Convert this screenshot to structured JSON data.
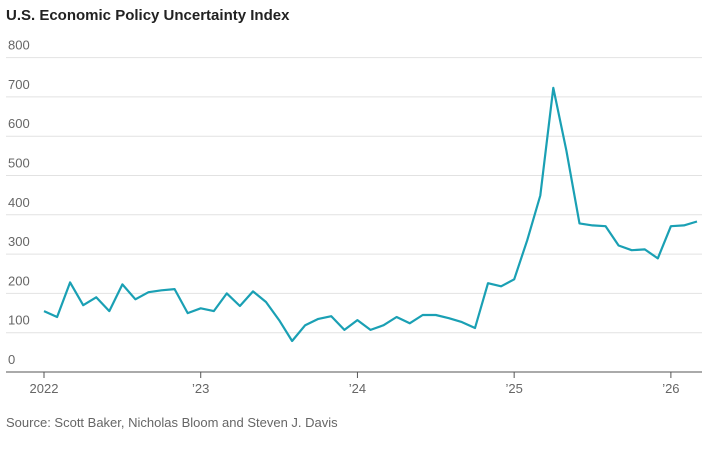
{
  "chart_data": {
    "type": "line",
    "title": "U.S. Economic Policy Uncertainty Index",
    "source": "Source: Scott Baker, Nicholas Bloom and Steven J. Davis",
    "x": [
      "2022-01",
      "2022-02",
      "2022-03",
      "2022-04",
      "2022-05",
      "2022-06",
      "2022-07",
      "2022-08",
      "2022-09",
      "2022-10",
      "2022-11",
      "2022-12",
      "2023-01",
      "2023-02",
      "2023-03",
      "2023-04",
      "2023-05",
      "2023-06",
      "2023-07",
      "2023-08",
      "2023-09",
      "2023-10",
      "2023-11",
      "2023-12",
      "2024-01",
      "2024-02",
      "2024-03",
      "2024-04",
      "2024-05",
      "2024-06",
      "2024-07",
      "2024-08",
      "2024-09",
      "2024-10",
      "2024-11",
      "2024-12",
      "2025-01",
      "2025-02",
      "2025-03",
      "2025-04",
      "2025-05",
      "2025-06",
      "2025-07",
      "2025-08",
      "2025-09",
      "2025-10",
      "2025-11",
      "2025-12",
      "2026-01",
      "2026-02",
      "2026-03"
    ],
    "series": [
      {
        "name": "Economic Policy Uncertainty Index",
        "color": "#1aa0b4",
        "values": [
          155,
          140,
          228,
          170,
          190,
          155,
          223,
          185,
          203,
          208,
          211,
          150,
          162,
          155,
          200,
          168,
          205,
          178,
          132,
          79,
          119,
          135,
          142,
          107,
          132,
          107,
          119,
          140,
          124,
          145,
          145,
          137,
          127,
          112,
          226,
          218,
          236,
          335,
          449,
          723,
          563,
          378,
          373,
          371,
          322,
          310,
          312,
          289,
          371,
          373,
          383
        ]
      }
    ],
    "xlim": [
      "2022-01",
      "2026-03"
    ],
    "xticks": [
      {
        "value": "2022-01",
        "label": "2022"
      },
      {
        "value": "2023-01",
        "label": "’23"
      },
      {
        "value": "2024-01",
        "label": "’24"
      },
      {
        "value": "2025-01",
        "label": "’25"
      },
      {
        "value": "2026-01",
        "label": "’26"
      }
    ],
    "ylim": [
      0,
      800
    ],
    "yticks": [
      0,
      100,
      200,
      300,
      400,
      500,
      600,
      700,
      800
    ],
    "grid": true
  }
}
